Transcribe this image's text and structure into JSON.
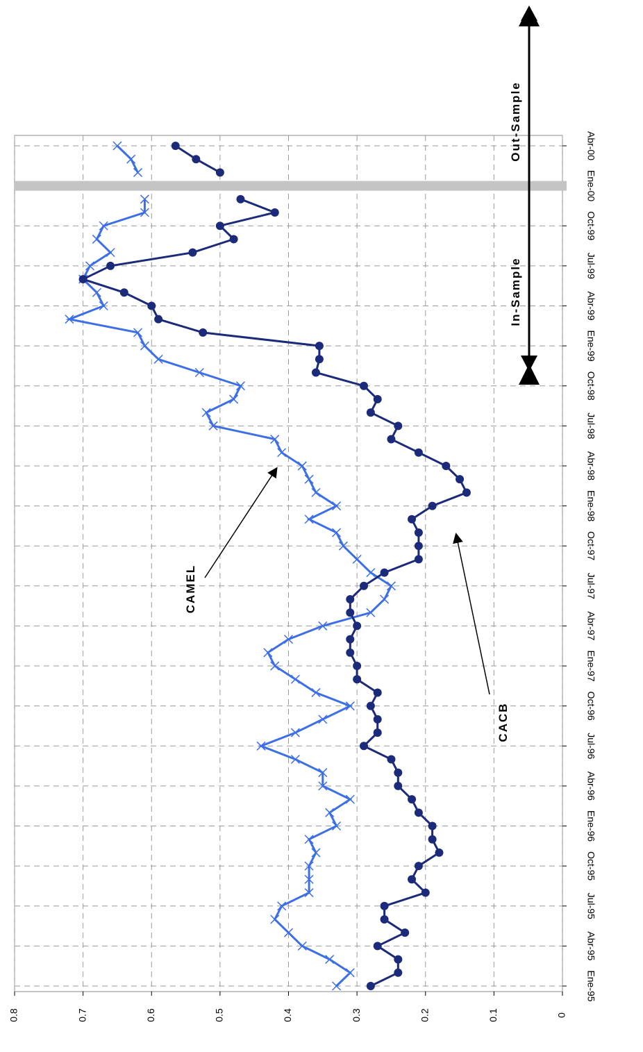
{
  "chart_data": {
    "type": "line",
    "categories": [
      "Ene-95",
      null,
      null,
      "Abr-95",
      null,
      null,
      "Jul-95",
      null,
      null,
      "Oct-95",
      null,
      null,
      "Ene-96",
      null,
      null,
      "Abr-96",
      null,
      null,
      "Jul-96",
      null,
      null,
      "Oct-96",
      null,
      null,
      "Ene-97",
      null,
      null,
      "Abr-97",
      null,
      null,
      "Jul-97",
      null,
      null,
      "Oct-97",
      null,
      null,
      "Ene-98",
      null,
      null,
      "Abr-98",
      null,
      null,
      "Jul-98",
      null,
      null,
      "Oct-98",
      null,
      null,
      "Ene-99",
      null,
      null,
      "Abr-99",
      null,
      null,
      "Jul-99",
      null,
      null,
      "Oct-99",
      null,
      null,
      "Ene-00",
      null,
      null,
      "Abr-00"
    ],
    "series": [
      {
        "name": "CAMEL",
        "color": "#3c6ee6",
        "marker": "x",
        "values": [
          0.33,
          0.31,
          0.34,
          0.38,
          0.4,
          0.42,
          0.41,
          0.37,
          0.37,
          0.37,
          0.36,
          0.37,
          0.33,
          0.34,
          0.31,
          0.35,
          0.35,
          0.39,
          0.44,
          0.39,
          0.35,
          0.31,
          0.36,
          0.39,
          0.42,
          0.43,
          0.4,
          0.35,
          0.28,
          0.26,
          0.25,
          0.28,
          0.3,
          0.32,
          0.33,
          0.37,
          0.33,
          0.36,
          0.37,
          0.38,
          0.41,
          0.42,
          0.51,
          0.52,
          0.48,
          0.47,
          0.53,
          0.59,
          0.61,
          0.62,
          0.72,
          0.67,
          0.68,
          0.7,
          0.69,
          0.66,
          0.68,
          0.67,
          0.61,
          0.61,
          null,
          0.62,
          0.63,
          0.65
        ]
      },
      {
        "name": "CACB",
        "color": "#1c2a7a",
        "marker": "circle",
        "values": [
          0.28,
          0.24,
          0.24,
          0.27,
          0.23,
          0.26,
          0.26,
          0.2,
          0.22,
          0.21,
          0.18,
          0.19,
          0.19,
          0.21,
          0.22,
          0.24,
          0.24,
          0.25,
          0.29,
          0.27,
          0.27,
          0.28,
          0.27,
          0.3,
          0.3,
          0.31,
          0.31,
          0.3,
          0.31,
          0.31,
          0.29,
          0.26,
          0.21,
          0.21,
          0.21,
          0.22,
          0.19,
          0.14,
          0.15,
          0.17,
          0.21,
          0.25,
          0.24,
          0.28,
          0.27,
          0.29,
          0.36,
          0.355,
          0.355,
          0.525,
          0.59,
          0.6,
          0.64,
          0.7,
          0.66,
          0.54,
          0.48,
          0.5,
          0.42,
          0.47,
          null,
          0.5,
          0.535,
          0.565
        ]
      }
    ],
    "ylim": [
      0,
      0.8
    ],
    "yticks": [
      0,
      0.1,
      0.2,
      0.3,
      0.4,
      0.5,
      0.6,
      0.7,
      0.8
    ],
    "grid": true,
    "annotations": [
      "In-Sample",
      "Out-Sample"
    ]
  }
}
